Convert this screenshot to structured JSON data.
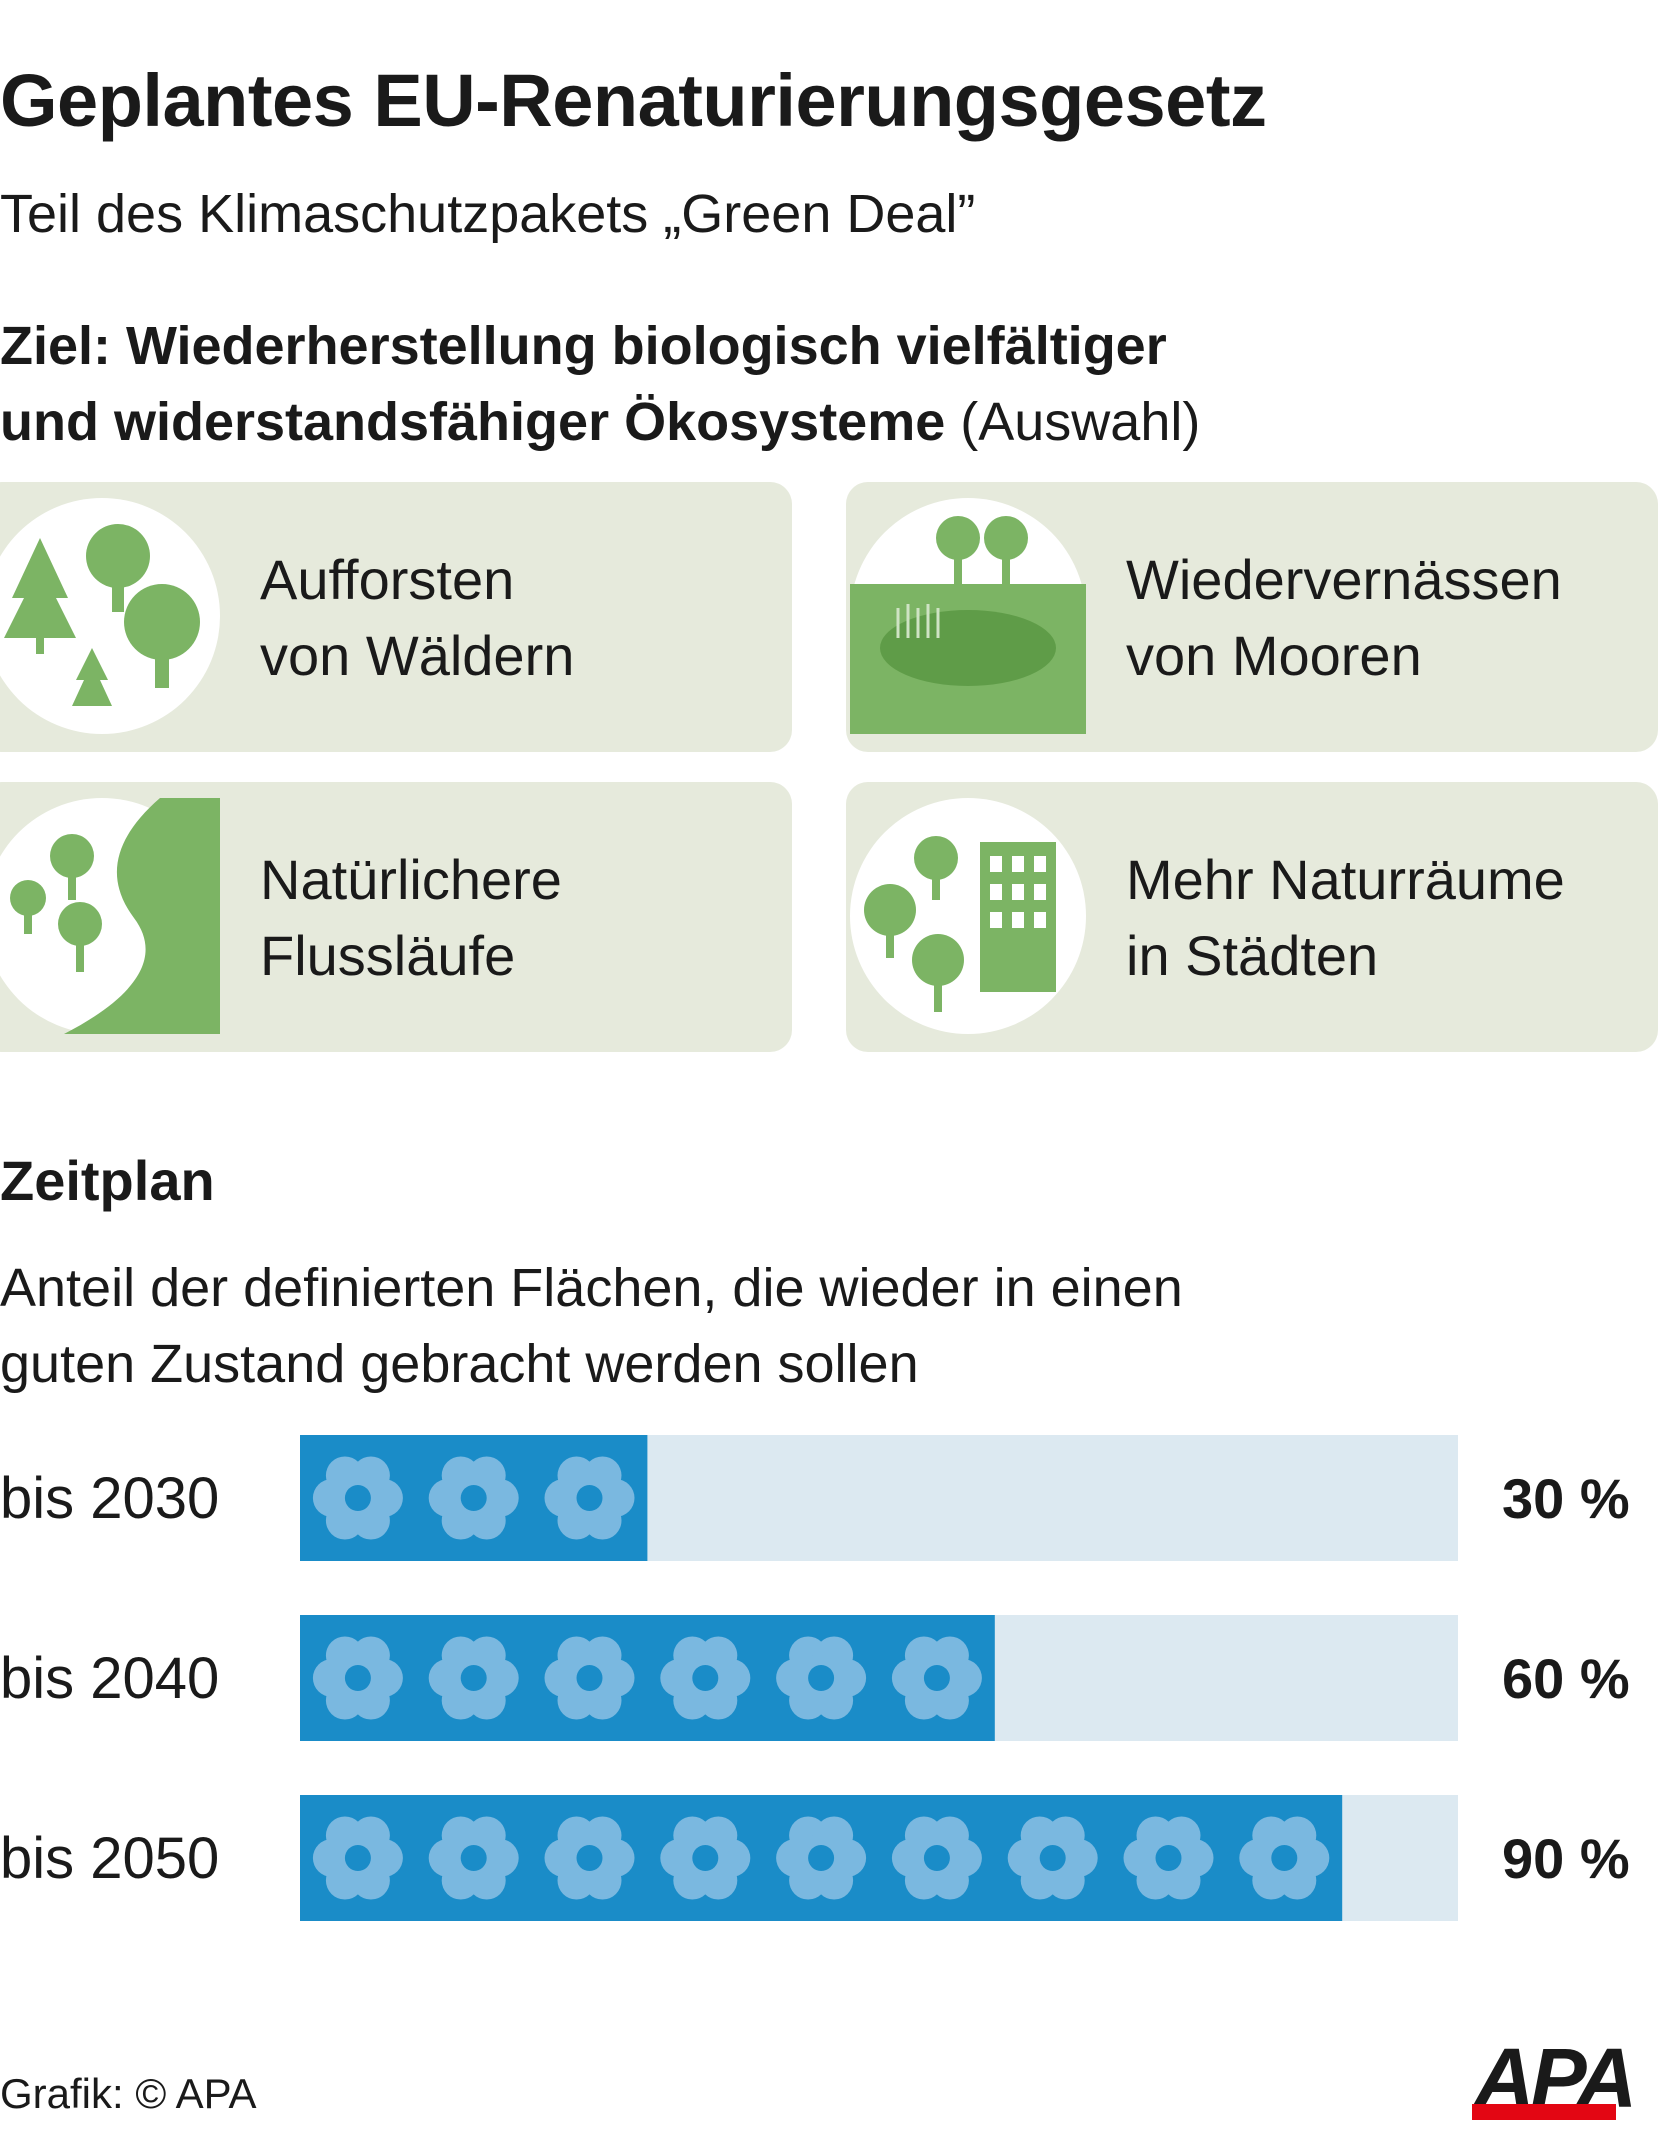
{
  "title": "Geplantes EU-Renaturierungsgesetz",
  "subtitle": "Teil des Klimaschutzpakets „Green Deal”",
  "goal": {
    "bold_line1": "Ziel: Wiederherstellung biologisch vielfältiger",
    "bold_line2": "und widerstandsfähiger Ökosysteme",
    "suffix": " (Auswahl)"
  },
  "measures": [
    {
      "line1": "Aufforsten",
      "line2": "von Wäldern",
      "icon": "forest-icon"
    },
    {
      "line1": "Wiedervernässen",
      "line2": "von Mooren",
      "icon": "moor-icon"
    },
    {
      "line1": "Natürlichere",
      "line2": "Flussläufe",
      "icon": "river-icon"
    },
    {
      "line1": "Mehr Naturräume",
      "line2": "in Städten",
      "icon": "city-nature-icon"
    }
  ],
  "schedule": {
    "heading": "Zeitplan",
    "desc_line1": "Anteil der definierten Flächen, die wieder in einen",
    "desc_line2": "guten Zustand gebracht werden sollen"
  },
  "chart_data": {
    "type": "bar",
    "orientation": "horizontal",
    "categories": [
      "bis 2030",
      "bis 2040",
      "bis 2050"
    ],
    "values": [
      30,
      60,
      90
    ],
    "value_labels": [
      "30 %",
      "60 %",
      "90 %"
    ],
    "unit": "%",
    "xlim": [
      0,
      100
    ],
    "colors": {
      "bar": "#1a8cc8",
      "track": "#dce9f1",
      "flower": "#7ab8e0"
    }
  },
  "footer": "Grafik: © APA",
  "logo": "APA",
  "colors": {
    "card_bg": "#e6eadc",
    "green": "#7cb464",
    "dark_green": "#5f9c48",
    "brand_red": "#e30613"
  }
}
